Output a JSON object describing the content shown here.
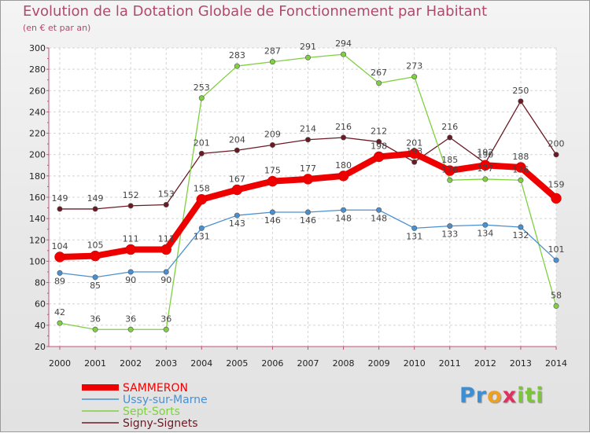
{
  "chart_data": {
    "type": "line",
    "title": "Evolution de la Dotation Globale de Fonctionnement par Habitant",
    "subtitle": "(en € et par an)",
    "xlabel": "",
    "ylabel": "",
    "ylim": [
      20,
      300
    ],
    "yticks": [
      20,
      40,
      60,
      80,
      100,
      120,
      140,
      160,
      180,
      200,
      220,
      240,
      260,
      280,
      300
    ],
    "categories": [
      "2000",
      "2001",
      "2002",
      "2003",
      "2004",
      "2005",
      "2006",
      "2007",
      "2008",
      "2009",
      "2010",
      "2011",
      "2012",
      "2013",
      "2014"
    ],
    "grid": true,
    "legend_position": "bottom-left",
    "series": [
      {
        "name": "SAMMERON",
        "color": "#ee0000",
        "values": [
          104,
          105,
          111,
          111,
          158,
          167,
          175,
          177,
          180,
          198,
          201,
          185,
          190,
          188,
          159
        ]
      },
      {
        "name": "Ussy-sur-Marne",
        "color": "#4a90d0",
        "values": [
          89,
          85,
          90,
          90,
          131,
          143,
          146,
          146,
          148,
          148,
          131,
          133,
          134,
          132,
          101
        ]
      },
      {
        "name": "Sept-Sorts",
        "color": "#7fd03e",
        "values": [
          42,
          36,
          36,
          36,
          253,
          283,
          287,
          291,
          294,
          267,
          273,
          176,
          177,
          176,
          58
        ]
      },
      {
        "name": "Signy-Signets",
        "color": "#6b1a24",
        "values": [
          149,
          149,
          152,
          153,
          201,
          204,
          209,
          214,
          216,
          212,
          193,
          216,
          192,
          250,
          200
        ]
      }
    ]
  },
  "brand": {
    "letters": [
      "P",
      "r",
      "o",
      "x",
      "i",
      "t",
      "i"
    ],
    "colors": [
      "#3a8fd6",
      "#3a8fd6",
      "#f0a020",
      "#e03060",
      "#7cc43a",
      "#7cc43a",
      "#7cc43a"
    ]
  }
}
